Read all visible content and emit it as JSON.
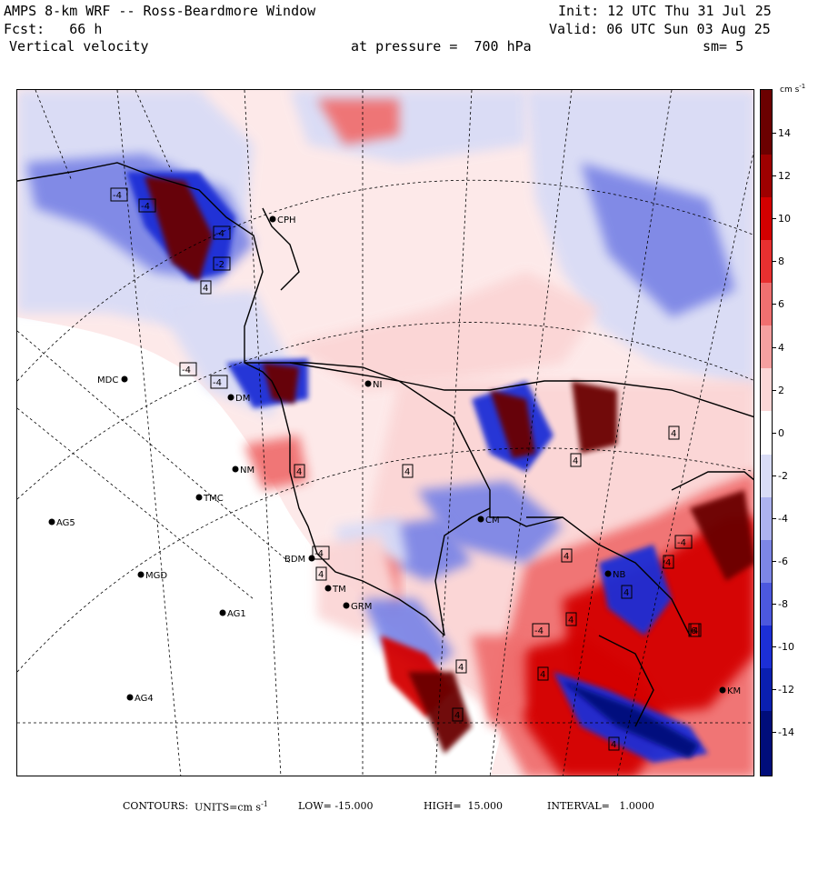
{
  "header": {
    "line1_left": "AMPS 8-km WRF -- Ross-Beardmore Window",
    "line2_left": "Fcst:   66 h",
    "line3_left": "Vertical velocity",
    "line1_right": "Init: 12 UTC Thu 31 Jul 25",
    "line2_right": "Valid: 06 UTC Sun 03 Aug 25",
    "pressure": "at pressure =  700 hPa",
    "smoothing": "sm= 5"
  },
  "colorbar": {
    "units": "cm s",
    "units_exp": "-1",
    "ticks": [
      "14",
      "12",
      "10",
      "8",
      "6",
      "4",
      "2",
      "0",
      "-2",
      "-4",
      "-6",
      "-8",
      "-10",
      "-12",
      "-14"
    ],
    "min": -16,
    "max": 16,
    "colors": {
      "max_pos": "#6b0000",
      "strong_pos": "#d40000",
      "mid_pos": "#f07070",
      "weak_pos": "#fbd6d6",
      "neutral": "#ffffff",
      "weak_neg": "#d9dcf6",
      "mid_neg": "#7d86e6",
      "strong_neg": "#1c2fd6",
      "max_neg": "#000d7a"
    }
  },
  "stations": [
    {
      "id": "CPH",
      "label": "CPH"
    },
    {
      "id": "MDC",
      "label": "MDC"
    },
    {
      "id": "DM",
      "label": "DM"
    },
    {
      "id": "NI",
      "label": "NI"
    },
    {
      "id": "NM",
      "label": "NM"
    },
    {
      "id": "TMC",
      "label": "TMC"
    },
    {
      "id": "AG5",
      "label": "AG5"
    },
    {
      "id": "BDM",
      "label": "BDM"
    },
    {
      "id": "MGD",
      "label": "MGD"
    },
    {
      "id": "TM",
      "label": "TM"
    },
    {
      "id": "GRM",
      "label": "GRM"
    },
    {
      "id": "AG1",
      "label": "AG1"
    },
    {
      "id": "AG4",
      "label": "AG4"
    },
    {
      "id": "CM",
      "label": "CM"
    },
    {
      "id": "NB",
      "label": "NB"
    },
    {
      "id": "KM",
      "label": "KM"
    }
  ],
  "contour_labels": [
    "-4",
    "-4",
    "-4",
    "-2",
    "4",
    "-4",
    "-4",
    "4",
    "4",
    "4",
    "-4",
    "4",
    "4",
    "4",
    "-4",
    "4",
    "4",
    "4",
    "4",
    "6",
    "4",
    "4",
    "-4",
    "4",
    "4"
  ],
  "footer": {
    "contours": "CONTOURS:",
    "units_label": "UNITS=cm s",
    "units_exp": "-1",
    "low": "LOW= -15.000",
    "high": "HIGH=  15.000",
    "interval": "INTERVAL=   1.0000"
  }
}
